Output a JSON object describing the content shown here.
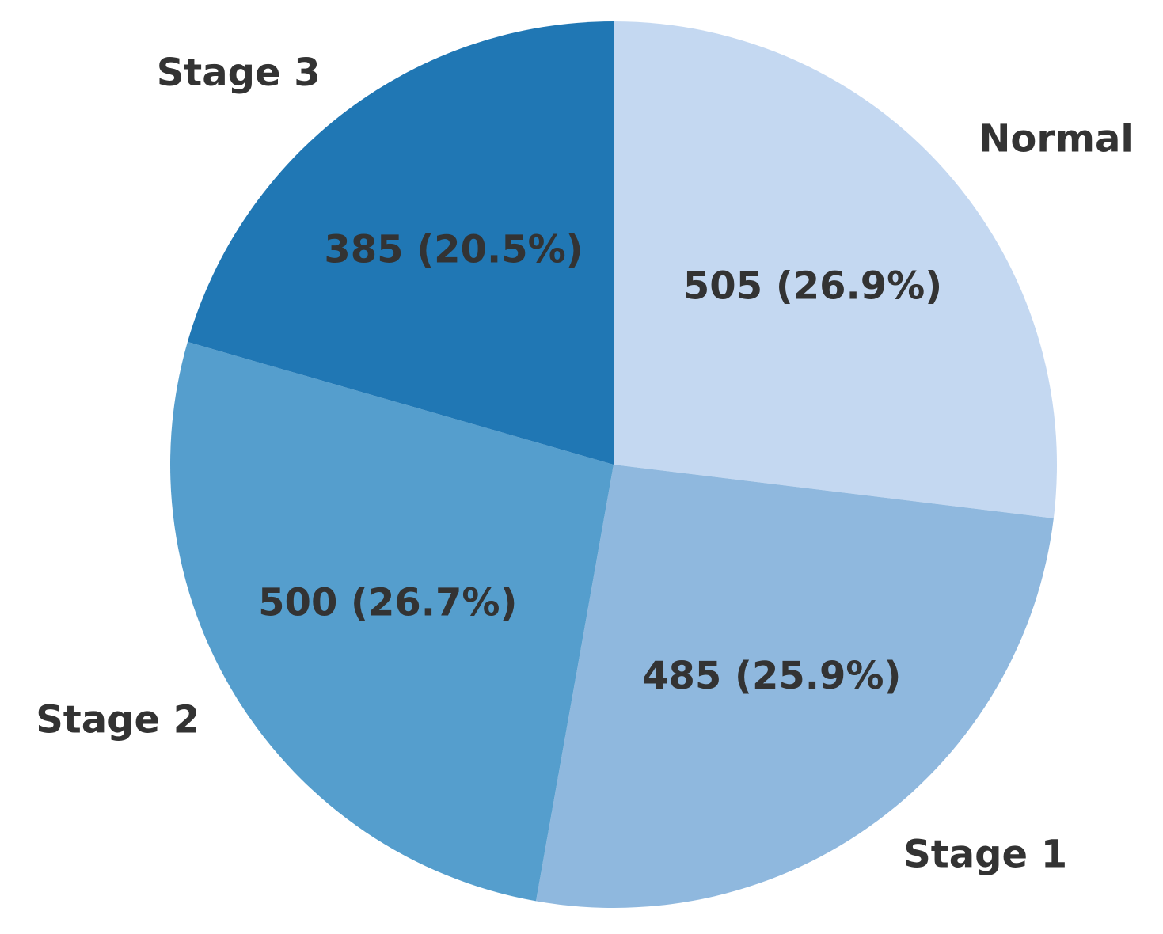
{
  "chart_data": {
    "type": "pie",
    "categories": [
      "Normal",
      "Stage 1",
      "Stage 2",
      "Stage 3"
    ],
    "values": [
      505,
      485,
      500,
      385
    ],
    "value_labels": [
      "505 (26.9%)",
      "485 (25.9%)",
      "500 (26.7%)",
      "385 (20.5%)"
    ],
    "colors": [
      "#c4d8f1",
      "#8fb8de",
      "#559ecd",
      "#2077b4"
    ]
  }
}
